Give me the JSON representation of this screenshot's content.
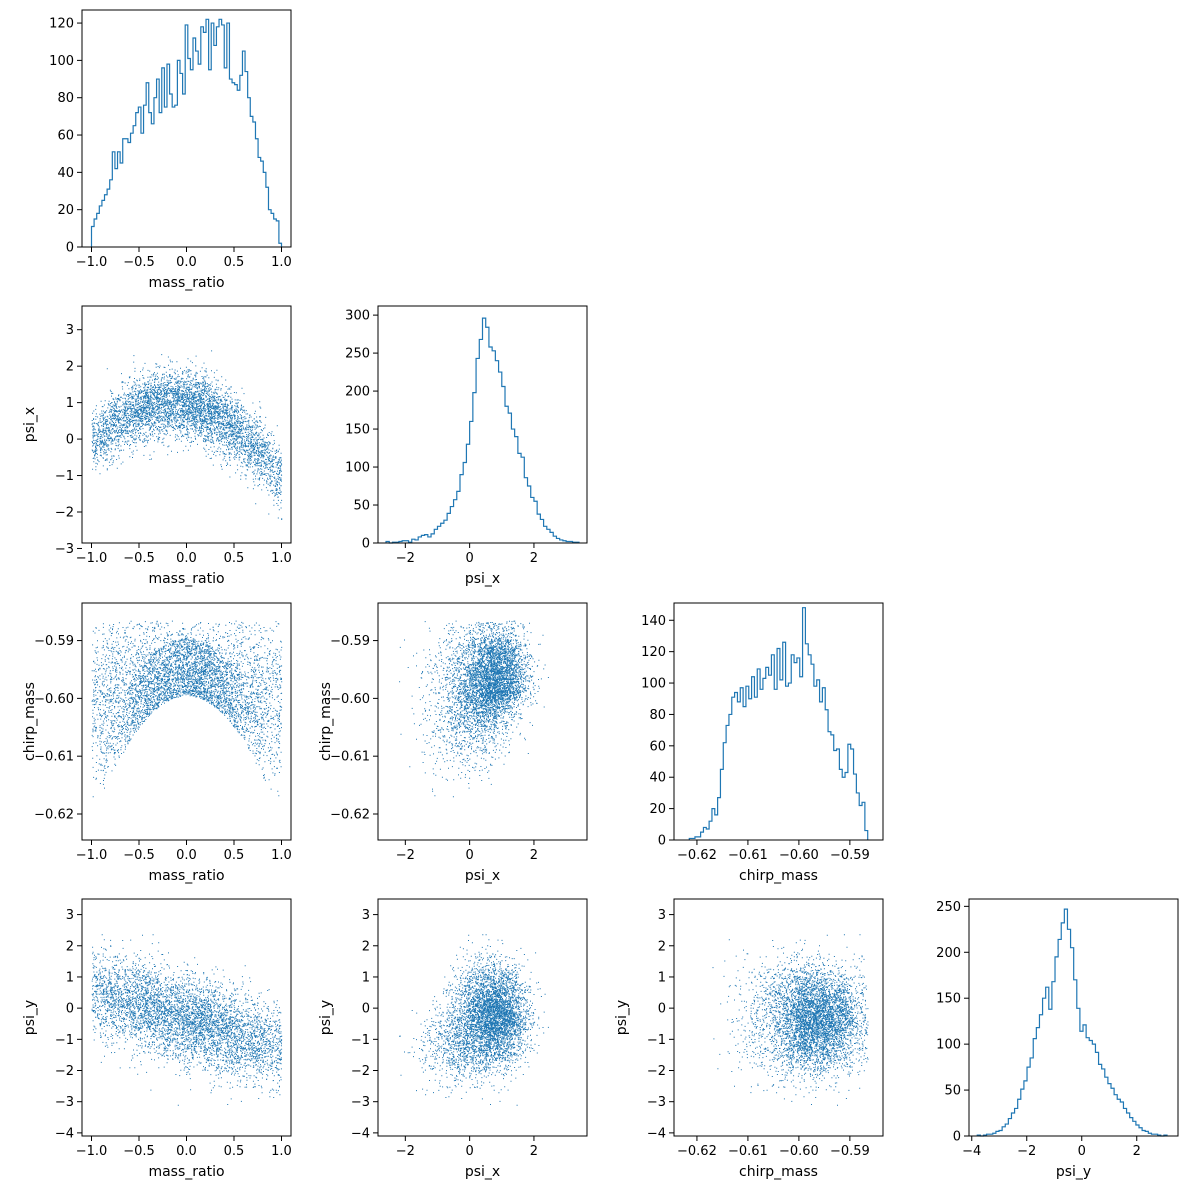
{
  "chart_data": {
    "type": "corner",
    "variables": [
      "mass_ratio",
      "psi_x",
      "chirp_mass",
      "psi_y"
    ],
    "series_color": "#1f77b4",
    "n_samples": 5000,
    "ranges": {
      "mass_ratio": [
        -1.1,
        1.1
      ],
      "psi_x": [
        -2.85,
        3.65
      ],
      "chirp_mass": [
        -0.6245,
        -0.5835
      ],
      "psi_y": [
        -4.1,
        3.5
      ]
    },
    "ticks": {
      "mass_ratio": [
        -1.0,
        -0.5,
        0.0,
        0.5,
        1.0
      ],
      "psi_x": [
        -2,
        0,
        2
      ],
      "psi_x_as_y": [
        -3,
        -2,
        -1,
        0,
        1,
        2,
        3
      ],
      "chirp_mass": [
        -0.62,
        -0.61,
        -0.6,
        -0.59
      ],
      "psi_y_as_x": [
        -4,
        -2,
        0,
        2
      ],
      "psi_y_as_y": [
        -4,
        -3,
        -2,
        -1,
        0,
        1,
        2,
        3
      ]
    },
    "tick_labels": {
      "mass_ratio": [
        "−1.0",
        "−0.5",
        "0.0",
        "0.5",
        "1.0"
      ],
      "psi_x": [
        "−2",
        "0",
        "2"
      ],
      "psi_x_as_y": [
        "−3",
        "−2",
        "−1",
        "0",
        "1",
        "2",
        "3"
      ],
      "chirp_mass_x": [
        "−0.62",
        "−0.61",
        "−0.60",
        "−0.59"
      ],
      "chirp_mass_y": [
        "−0.62",
        "−0.61",
        "−0.60",
        "−0.59"
      ],
      "psi_y_as_x": [
        "−4",
        "−2",
        "0",
        "2"
      ],
      "psi_y_as_y": [
        "−4",
        "−3",
        "−2",
        "−1",
        "0",
        "1",
        "2",
        "3"
      ]
    },
    "histograms": [
      {
        "variable": "mass_ratio",
        "xlabel": "mass_ratio",
        "ylim": [
          0,
          127
        ],
        "yticks": [
          0,
          20,
          40,
          60,
          80,
          100,
          120
        ],
        "bin_range": [
          -1.0,
          1.0
        ],
        "counts": [
          11,
          15,
          18,
          22,
          25,
          28,
          31,
          36,
          51,
          42,
          51,
          45,
          58,
          58,
          56,
          61,
          65,
          72,
          75,
          61,
          76,
          88,
          72,
          66,
          80,
          90,
          72,
          96,
          75,
          98,
          82,
          75,
          76,
          100,
          93,
          82,
          119,
          101,
          95,
          112,
          105,
          98,
          118,
          115,
          122,
          95,
          120,
          108,
          118,
          122,
          119,
          96,
          120,
          90,
          88,
          87,
          84,
          92,
          105,
          94,
          80,
          70,
          67,
          58,
          48,
          46,
          40,
          32,
          20,
          18,
          15,
          14,
          2
        ]
      },
      {
        "variable": "psi_x",
        "xlabel": "psi_x",
        "ylim": [
          0,
          312
        ],
        "yticks": [
          0,
          50,
          100,
          150,
          200,
          250,
          300
        ],
        "bin_range": [
          -2.6,
          3.4
        ],
        "counts": [
          2,
          0,
          1,
          1,
          2,
          3,
          3,
          1,
          5,
          4,
          8,
          10,
          11,
          8,
          12,
          18,
          22,
          26,
          30,
          39,
          48,
          57,
          68,
          90,
          106,
          130,
          160,
          198,
          243,
          268,
          296,
          284,
          258,
          253,
          240,
          225,
          206,
          180,
          171,
          150,
          140,
          118,
          113,
          86,
          75,
          60,
          55,
          38,
          31,
          22,
          18,
          14,
          9,
          6,
          4,
          3,
          2,
          2,
          1,
          1
        ]
      },
      {
        "variable": "chirp_mass",
        "xlabel": "chirp_mass",
        "ylim": [
          0,
          151
        ],
        "yticks": [
          0,
          20,
          40,
          60,
          80,
          100,
          120,
          140
        ],
        "bin_range": [
          -0.6215,
          -0.5865
        ],
        "counts": [
          1,
          1,
          2,
          2,
          5,
          8,
          7,
          12,
          20,
          16,
          27,
          45,
          62,
          73,
          80,
          91,
          94,
          88,
          97,
          85,
          98,
          90,
          104,
          91,
          109,
          96,
          103,
          110,
          105,
          118,
          96,
          122,
          102,
          126,
          98,
          100,
          118,
          113,
          116,
          104,
          148,
          125,
          118,
          112,
          98,
          102,
          88,
          97,
          83,
          69,
          67,
          57,
          58,
          45,
          40,
          43,
          61,
          58,
          42,
          30,
          22,
          24,
          6
        ]
      },
      {
        "variable": "psi_y",
        "xlabel": "psi_y",
        "ylim": [
          0,
          258
        ],
        "yticks": [
          0,
          50,
          100,
          150,
          200,
          250
        ],
        "bin_range": [
          -3.8,
          3.1
        ],
        "counts": [
          1,
          0,
          1,
          2,
          2,
          3,
          5,
          6,
          10,
          13,
          19,
          25,
          30,
          40,
          51,
          60,
          75,
          85,
          106,
          118,
          132,
          150,
          162,
          138,
          168,
          195,
          214,
          232,
          247,
          225,
          205,
          170,
          139,
          114,
          121,
          107,
          104,
          100,
          91,
          78,
          73,
          64,
          57,
          52,
          45,
          40,
          37,
          30,
          25,
          20,
          16,
          12,
          9,
          6,
          5,
          3,
          2,
          2,
          1,
          0,
          1
        ]
      }
    ],
    "scatters": [
      {
        "x": "mass_ratio",
        "y": "psi_x",
        "xlabel": "mass_ratio",
        "ylabel": "psi_x"
      },
      {
        "x": "mass_ratio",
        "y": "chirp_mass",
        "xlabel": "mass_ratio",
        "ylabel": "chirp_mass"
      },
      {
        "x": "psi_x",
        "y": "chirp_mass",
        "xlabel": "psi_x",
        "ylabel": "chirp_mass"
      },
      {
        "x": "mass_ratio",
        "y": "psi_y",
        "xlabel": "mass_ratio",
        "ylabel": "psi_y"
      },
      {
        "x": "psi_x",
        "y": "psi_y",
        "xlabel": "psi_x",
        "ylabel": "psi_y"
      },
      {
        "x": "chirp_mass",
        "y": "psi_y",
        "xlabel": "chirp_mass",
        "ylabel": "psi_y"
      }
    ]
  }
}
